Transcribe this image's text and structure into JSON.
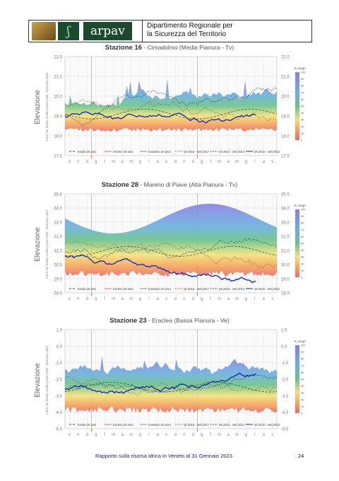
{
  "header": {
    "logo_text": "arpav",
    "department_line1": "Dipartimento Regionale per",
    "department_line2": "la Sicurezza del Territorio"
  },
  "months": [
    "o",
    "n",
    "d",
    "g",
    "f",
    "m",
    "a",
    "m",
    "g",
    "l",
    "a",
    "s",
    "o",
    "n",
    "d",
    "g",
    "f",
    "m",
    "a",
    "m",
    "g",
    "l",
    "a",
    "s"
  ],
  "legend_items": [
    "media 20 anni",
    "minimo 20 anni",
    "massimo 20 anni",
    "ott 2016 - sett 2017",
    "ott 2013 - sett 2014",
    "ott 2022 - sett 2023"
  ],
  "side_legend_title": "% range",
  "side_legend_ticks": [
    "100",
    "90",
    "80",
    "70",
    "60",
    "50",
    "40",
    "30",
    "20",
    "10",
    "0"
  ],
  "ylabel_small": "metri sul livello medio mare IGM - Genova 1942",
  "ylabel_big": "Elevazione",
  "panels": [
    {
      "title_prefix": "Stazione 16",
      "title_rest": " - Cimadolmo (Media Pianura - Tv)",
      "yticks": [
        "22.0",
        "21.0",
        "20.0",
        "19.0",
        "18.0",
        "17.0"
      ],
      "yticks_right": [
        "22.0",
        "21.0",
        "20.0",
        "19.0",
        "18.0",
        "17.0"
      ]
    },
    {
      "title_prefix": "Stazione 28",
      "title_rest": " - Mareno di Piave (Alta Pianura - Tv)",
      "yticks": [
        "35.0",
        "34.0",
        "33.0",
        "32.0",
        "31.0",
        "30.0",
        "29.0",
        "28.0"
      ],
      "yticks_right": [
        "35.0",
        "34.0",
        "33.0",
        "32.0",
        "31.0",
        "30.0",
        "29.0",
        "28.0"
      ]
    },
    {
      "title_prefix": "Stazione 23",
      "title_rest": " - Eraclea (Bassa Pianura - Ve)",
      "yticks": [
        "1.0",
        "0.0",
        "-1.0",
        "-2.0",
        "-3.0",
        "-4.0",
        "-5.0"
      ],
      "yticks_right": [
        "1.0",
        "0.0",
        "-1.0",
        "-2.0",
        "-3.0",
        "-4.0",
        "-5.0"
      ]
    }
  ],
  "colors": {
    "band_top": "#8b7fe0",
    "band_mid_blue": "#6aaee0",
    "band_green": "#69c28a",
    "band_yellow": "#f2e27a",
    "band_orange": "#f5a65a",
    "band_red": "#ec6a6a",
    "current_year": "#1a2fb8",
    "mean": "#3a5a2a",
    "orange_marker": "#e07a1f"
  },
  "footer": {
    "text": "Rapporto sulla risorsa idrica in Veneto al 31 Gennaio 2023",
    "page": "24"
  }
}
